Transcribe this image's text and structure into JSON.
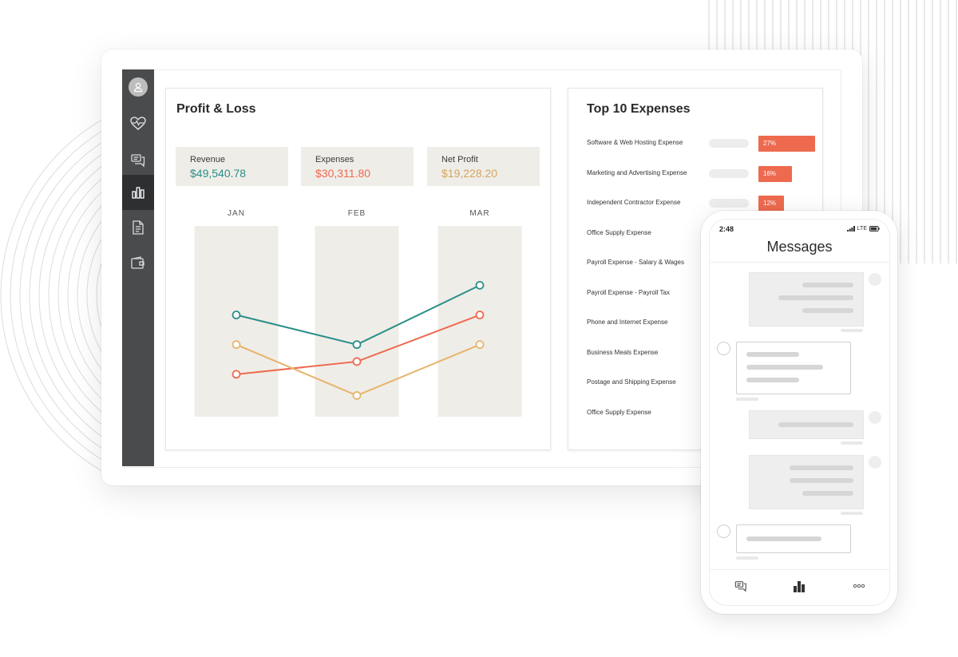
{
  "colors": {
    "revenue": "#2a8f8a",
    "expenses": "#ee6a4f",
    "net_profit": "#e6b46b",
    "sidebar": "#4a4b4d",
    "column_bg": "#efede8"
  },
  "sidebar": {
    "items": [
      {
        "icon": "user-icon"
      },
      {
        "icon": "heart-pulse-icon"
      },
      {
        "icon": "chat-icon"
      },
      {
        "icon": "bar-chart-icon",
        "active": true
      },
      {
        "icon": "document-icon"
      },
      {
        "icon": "wallet-icon"
      }
    ]
  },
  "profit_loss": {
    "title": "Profit & Loss",
    "kpis": [
      {
        "label": "Revenue",
        "value": "$49,540.78"
      },
      {
        "label": "Expenses",
        "value": "$30,311.80"
      },
      {
        "label": "Net Profit",
        "value": "$19,228.20"
      }
    ]
  },
  "chart_data": {
    "type": "line",
    "categories": [
      "JAN",
      "FEB",
      "MAR"
    ],
    "series": [
      {
        "color": "#2a8f8a",
        "values": [
          38,
          24,
          52
        ]
      },
      {
        "color": "#ee6a4f",
        "values": [
          10,
          16,
          38
        ]
      },
      {
        "color": "#e6b46b",
        "values": [
          24,
          0,
          24
        ]
      }
    ],
    "ylim": [
      -10,
      80
    ],
    "grid": false
  },
  "top_expenses": {
    "title": "Top 10 Expenses",
    "items": [
      {
        "label": "Software & Web Hosting Expense",
        "percent": 27,
        "percent_label": "27%"
      },
      {
        "label": "Marketing and Advertising Expense",
        "percent": 16,
        "percent_label": "16%"
      },
      {
        "label": "Independent Contractor Expense",
        "percent": 12,
        "percent_label": "12%"
      },
      {
        "label": "Office Supply Expense"
      },
      {
        "label": "Payroll Expense  -  Salary & Wages"
      },
      {
        "label": "Payroll Expense  - Payroll Tax"
      },
      {
        "label": "Phone and Internet Expense"
      },
      {
        "label": "Business Meals Expense"
      },
      {
        "label": "Postage and Shipping Expense"
      },
      {
        "label": "Office Supply Expense"
      }
    ]
  },
  "phone": {
    "time": "2:48",
    "network": "LTE",
    "title": "Messages",
    "tabs": [
      {
        "icon": "chat-icon"
      },
      {
        "icon": "bar-chart-icon",
        "active": true
      },
      {
        "icon": "more-icon"
      }
    ]
  }
}
